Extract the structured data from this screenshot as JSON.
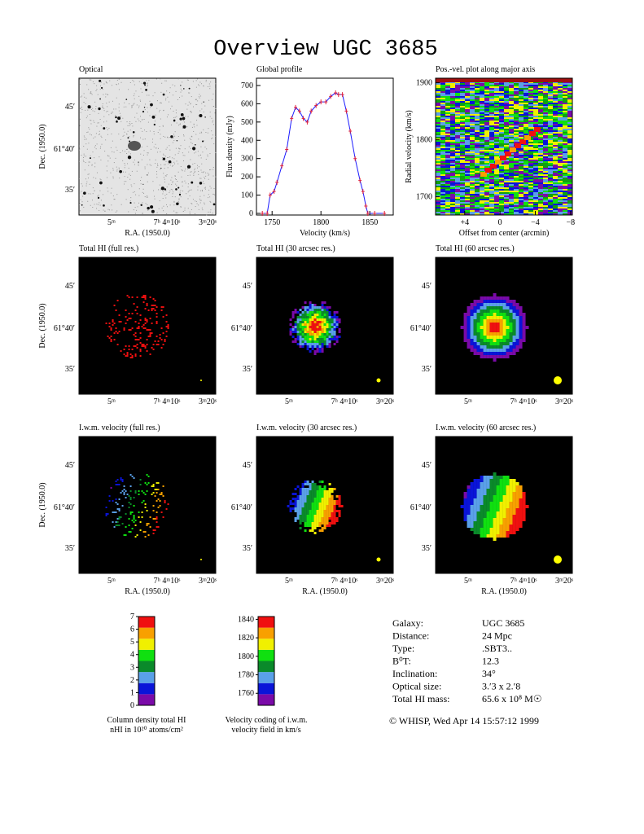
{
  "title": "Overview UGC 3685",
  "map_axes": {
    "dec_label": "Dec. (1950.0)",
    "ra_label": "R.A. (1950.0)",
    "dec_ticks": [
      "45′",
      "61°40′",
      "35′"
    ],
    "ra_ticks": [
      "5ᵐ",
      "7ʰ 4ᵐ10ˢ",
      "3ᵐ20ˢ"
    ]
  },
  "maps": [
    {
      "title": "Optical"
    },
    {
      "title": "Total HI (full res.)"
    },
    {
      "title": "Total HI (30 arcsec res.)"
    },
    {
      "title": "Total HI (60 arcsec res.)"
    },
    {
      "title": "I.w.m. velocity (full res.)"
    },
    {
      "title": "I.w.m. velocity (30 arcsec res.)"
    },
    {
      "title": "I.w.m. velocity (60 arcsec res.)"
    }
  ],
  "chart_data": [
    {
      "type": "line",
      "title": "Global profile",
      "x_label": "Velocity (km/s)",
      "y_label": "Flux density (mJy)",
      "color": "#1a1aff",
      "marker_color": "#e0203a",
      "x": [
        1740,
        1745,
        1748,
        1752,
        1755,
        1760,
        1765,
        1770,
        1774,
        1778,
        1782,
        1786,
        1790,
        1795,
        1800,
        1805,
        1810,
        1815,
        1818,
        1822,
        1826,
        1830,
        1835,
        1840,
        1843,
        1846,
        1848,
        1855,
        1865
      ],
      "values": [
        0,
        0,
        100,
        120,
        170,
        260,
        350,
        520,
        580,
        560,
        520,
        500,
        560,
        590,
        610,
        610,
        640,
        660,
        650,
        650,
        560,
        450,
        300,
        180,
        120,
        40,
        0,
        0,
        0
      ],
      "xlim": [
        1734,
        1874
      ],
      "ylim": [
        -9,
        740
      ],
      "xticks": [
        1750,
        1800,
        1850
      ],
      "yticks": [
        0,
        100,
        200,
        300,
        400,
        500,
        600,
        700
      ]
    },
    {
      "type": "image",
      "title": "Pos.-vel. plot along major axis",
      "x_label": "Offset from center (arcmin)",
      "y_label": "Radial velocity (km/s)",
      "xlim": [
        7.3,
        -8.2
      ],
      "ylim": [
        1668,
        1908
      ],
      "xticks": [
        {
          "value": 4,
          "label": "+4"
        },
        0,
        {
          "value": -4,
          "label": "−4"
        },
        {
          "value": -8,
          "label": "−8"
        }
      ],
      "yticks": [
        1700,
        1800,
        1900
      ]
    }
  ],
  "colorbars": [
    {
      "caption": [
        "Column density total HI",
        "nHI in 10²⁰ atoms/cm²"
      ],
      "lim": [
        0,
        7
      ],
      "ticks": [
        0,
        1,
        2,
        3,
        4,
        5,
        6,
        7
      ],
      "colors": [
        "#7a0aa8",
        "#0a14d8",
        "#5aa0e8",
        "#0a8a2a",
        "#10e010",
        "#f0f000",
        "#f8a000",
        "#f01010"
      ]
    },
    {
      "caption": [
        "Velocity coding of i.w.m.",
        "velocity field in km/s"
      ],
      "lim": [
        1747,
        1843
      ],
      "ticks": [
        1760,
        1780,
        1800,
        1820,
        1840
      ],
      "colors": [
        "#7a0aa8",
        "#0a14d8",
        "#5aa0e8",
        "#0a8a2a",
        "#10e010",
        "#f0f000",
        "#f8a000",
        "#f01010"
      ]
    }
  ],
  "info": {
    "rows": [
      [
        "Galaxy:",
        "UGC 3685"
      ],
      [
        "Distance:",
        "24 Mpc"
      ],
      [
        "Type:",
        ".SBT3.."
      ],
      [
        "B⁰T:",
        "12.3"
      ],
      [
        "Inclination:",
        "34°"
      ],
      [
        "Optical size:",
        "3.′3 x 2.′8"
      ],
      [
        "Total HI mass:",
        "65.6 x 10⁸ M☉"
      ]
    ],
    "footer": "© WHISP, Wed Apr 14 15:57:12 1999"
  }
}
